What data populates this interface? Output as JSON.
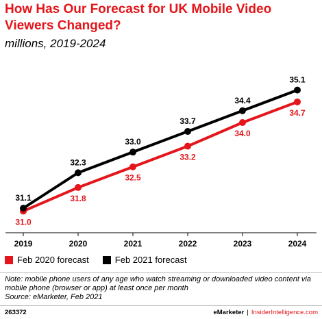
{
  "header": {
    "title": "How Has Our Forecast for UK Mobile Video Viewers Changed?",
    "subtitle": "millions, 2019-2024"
  },
  "colors": {
    "accent": "#e4161b",
    "series_2020": "#e4161b",
    "series_2021": "#000000"
  },
  "chart_data": {
    "type": "line",
    "title": "How Has Our Forecast for UK Mobile Video Viewers Changed?",
    "subtitle": "millions, 2019-2024",
    "x": [
      "2019",
      "2020",
      "2021",
      "2022",
      "2023",
      "2024"
    ],
    "ylim": [
      30.5,
      35.6
    ],
    "grid": false,
    "legend": "bottom-left",
    "series": [
      {
        "name": "Feb 2020 forecast",
        "color": "#e4161b",
        "values": [
          31.0,
          31.8,
          32.5,
          33.2,
          34.0,
          34.7
        ],
        "labels": [
          "31.0",
          "31.8",
          "32.5",
          "33.2",
          "34.0",
          "34.7"
        ],
        "label_position": "below"
      },
      {
        "name": "Feb 2021 forecast",
        "color": "#000000",
        "values": [
          31.1,
          32.3,
          33.0,
          33.7,
          34.4,
          35.1
        ],
        "labels": [
          "31.1",
          "32.3",
          "33.0",
          "33.7",
          "34.4",
          "35.1"
        ],
        "label_position": "above"
      }
    ]
  },
  "note": "Note: mobile phone users of any age who watch streaming or downloaded video content via mobile phone (browser or app) at least once per month",
  "source": "Source: eMarketer, Feb 2021",
  "footer": {
    "chart_id": "263372",
    "brand_left": "eMarketer",
    "separator": "|",
    "brand_right": "InsiderIntelligence.com"
  }
}
